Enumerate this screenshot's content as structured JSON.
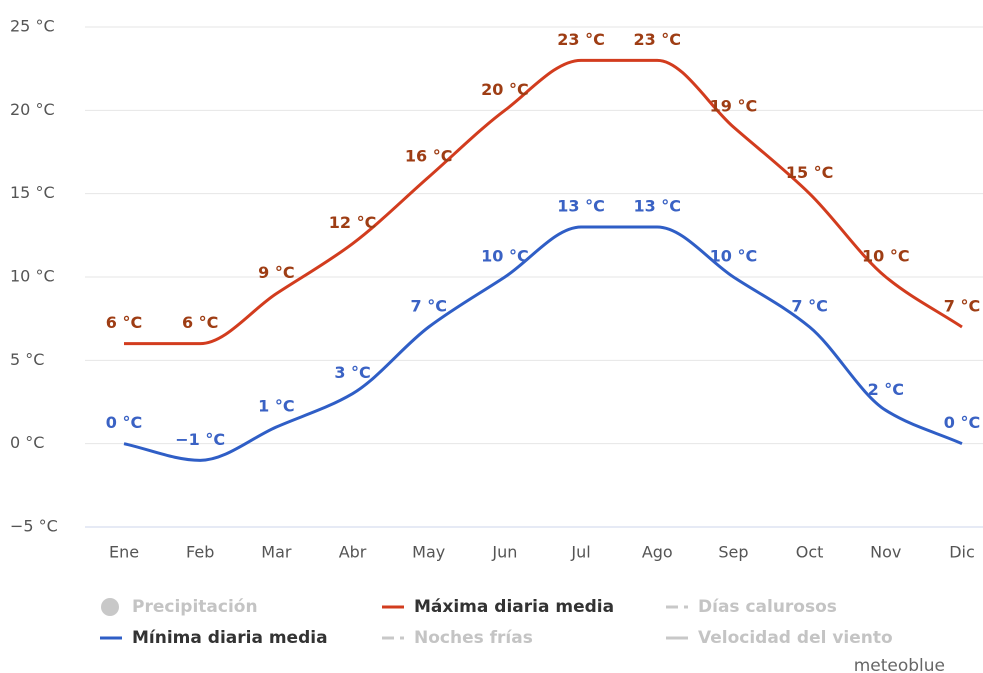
{
  "chart_data": {
    "type": "line",
    "categories": [
      "Ene",
      "Feb",
      "Mar",
      "Abr",
      "May",
      "Jun",
      "Jul",
      "Ago",
      "Sep",
      "Oct",
      "Nov",
      "Dic"
    ],
    "series": [
      {
        "name": "Máxima diaria media",
        "color": "#d23c1e",
        "label_color": "#9e3d14",
        "values": [
          6,
          6,
          9,
          12,
          16,
          20,
          23,
          23,
          19,
          15,
          10,
          7
        ],
        "value_labels": [
          "6 °C",
          "6 °C",
          "9 °C",
          "12 °C",
          "16 °C",
          "20 °C",
          "23 °C",
          "23 °C",
          "19 °C",
          "15 °C",
          "10 °C",
          "7 °C"
        ]
      },
      {
        "name": "Mínima diaria media",
        "color": "#2f5ec6",
        "label_color": "#3a62c4",
        "values": [
          0,
          -1,
          1,
          3,
          7,
          10,
          13,
          13,
          10,
          7,
          2,
          0
        ],
        "value_labels": [
          "0 °C",
          "−1 °C",
          "1 °C",
          "3 °C",
          "7 °C",
          "10 °C",
          "13 °C",
          "13 °C",
          "10 °C",
          "7 °C",
          "2 °C",
          "0 °C"
        ]
      }
    ],
    "ylim": [
      -5,
      25
    ],
    "yticks": [
      {
        "value": -5,
        "label": "−5 °C"
      },
      {
        "value": 0,
        "label": "0 °C"
      },
      {
        "value": 5,
        "label": "5 °C"
      },
      {
        "value": 10,
        "label": "10 °C"
      },
      {
        "value": 15,
        "label": "15 °C"
      },
      {
        "value": 20,
        "label": "20 °C"
      },
      {
        "value": 25,
        "label": "25 °C"
      }
    ],
    "grid": true,
    "legend_hidden": [
      {
        "name": "Precipitación",
        "symbol": "circle"
      },
      {
        "name": "Días calurosos",
        "symbol": "dash-dot"
      },
      {
        "name": "Noches frías",
        "symbol": "dash-dot"
      },
      {
        "name": "Velocidad del viento",
        "symbol": "line"
      }
    ],
    "credit": "meteoblue"
  }
}
